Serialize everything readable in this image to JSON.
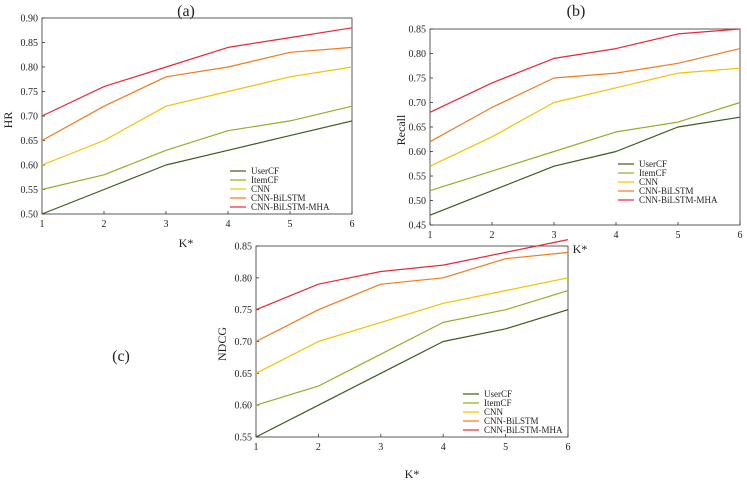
{
  "chart_data": [
    {
      "type": "line",
      "panel_label": "(a)",
      "xlabel": "K*",
      "ylabel": "HR",
      "x": [
        1,
        2,
        3,
        4,
        5,
        6
      ],
      "xticks": [
        "1",
        "2",
        "3",
        "4",
        "5",
        "6"
      ],
      "ylim": [
        0.5,
        0.9
      ],
      "yticks": [
        "0.50",
        "0.55",
        "0.60",
        "0.65",
        "0.70",
        "0.75",
        "0.80",
        "0.85",
        "0.90"
      ],
      "legend_position": "bottom-right",
      "series": [
        {
          "name": "UserCF",
          "color": "#3d5a1e",
          "values": [
            0.5,
            0.55,
            0.6,
            0.63,
            0.66,
            0.69
          ]
        },
        {
          "name": "ItemCF",
          "color": "#9aab2a",
          "values": [
            0.55,
            0.58,
            0.63,
            0.67,
            0.69,
            0.72
          ]
        },
        {
          "name": "CNN",
          "color": "#f2c200",
          "values": [
            0.6,
            0.65,
            0.72,
            0.75,
            0.78,
            0.8
          ]
        },
        {
          "name": "CNN-BiLSTM",
          "color": "#f07b1e",
          "values": [
            0.65,
            0.72,
            0.78,
            0.8,
            0.83,
            0.84
          ]
        },
        {
          "name": "CNN-BiLSTM-MHA",
          "color": "#e8283a",
          "values": [
            0.7,
            0.76,
            0.8,
            0.84,
            0.86,
            0.88
          ]
        }
      ]
    },
    {
      "type": "line",
      "panel_label": "(b)",
      "xlabel": "K*",
      "ylabel": "Recall",
      "x": [
        1,
        2,
        3,
        4,
        5,
        6
      ],
      "xticks": [
        "1",
        "2",
        "3",
        "4",
        "5",
        "6"
      ],
      "ylim": [
        0.45,
        0.85
      ],
      "yticks": [
        "0.45",
        "0.50",
        "0.55",
        "0.60",
        "0.65",
        "0.70",
        "0.75",
        "0.80",
        "0.85"
      ],
      "legend_position": "bottom-right",
      "series": [
        {
          "name": "UserCF",
          "color": "#3d5a1e",
          "values": [
            0.47,
            0.52,
            0.57,
            0.6,
            0.65,
            0.67
          ]
        },
        {
          "name": "ItemCF",
          "color": "#9aab2a",
          "values": [
            0.52,
            0.56,
            0.6,
            0.64,
            0.66,
            0.7
          ]
        },
        {
          "name": "CNN",
          "color": "#f2c200",
          "values": [
            0.57,
            0.63,
            0.7,
            0.73,
            0.76,
            0.77
          ]
        },
        {
          "name": "CNN-BiLSTM",
          "color": "#f07b1e",
          "values": [
            0.62,
            0.69,
            0.75,
            0.76,
            0.78,
            0.81
          ]
        },
        {
          "name": "CNN-BiLSTM-MHA",
          "color": "#e8283a",
          "values": [
            0.68,
            0.74,
            0.79,
            0.81,
            0.84,
            0.85
          ]
        }
      ]
    },
    {
      "type": "line",
      "panel_label": "(c)",
      "xlabel": "K*",
      "ylabel": "NDCG",
      "x": [
        1,
        2,
        3,
        4,
        5,
        6
      ],
      "xticks": [
        "1",
        "2",
        "3",
        "4",
        "5",
        "6"
      ],
      "ylim": [
        0.55,
        0.85
      ],
      "yticks": [
        "0.55",
        "0.60",
        "0.65",
        "0.70",
        "0.75",
        "0.80",
        "0.85"
      ],
      "legend_position": "bottom-right",
      "series": [
        {
          "name": "UserCF",
          "color": "#3d5a1e",
          "values": [
            0.55,
            0.6,
            0.65,
            0.7,
            0.72,
            0.75
          ]
        },
        {
          "name": "ItemCF",
          "color": "#9aab2a",
          "values": [
            0.6,
            0.63,
            0.68,
            0.73,
            0.75,
            0.78
          ]
        },
        {
          "name": "CNN",
          "color": "#f2c200",
          "values": [
            0.65,
            0.7,
            0.73,
            0.76,
            0.78,
            0.8
          ]
        },
        {
          "name": "CNN-BiLSTM",
          "color": "#f07b1e",
          "values": [
            0.7,
            0.75,
            0.79,
            0.8,
            0.83,
            0.84
          ]
        },
        {
          "name": "CNN-BiLSTM-MHA",
          "color": "#e8283a",
          "values": [
            0.75,
            0.79,
            0.81,
            0.82,
            0.84,
            0.86
          ]
        }
      ]
    }
  ]
}
